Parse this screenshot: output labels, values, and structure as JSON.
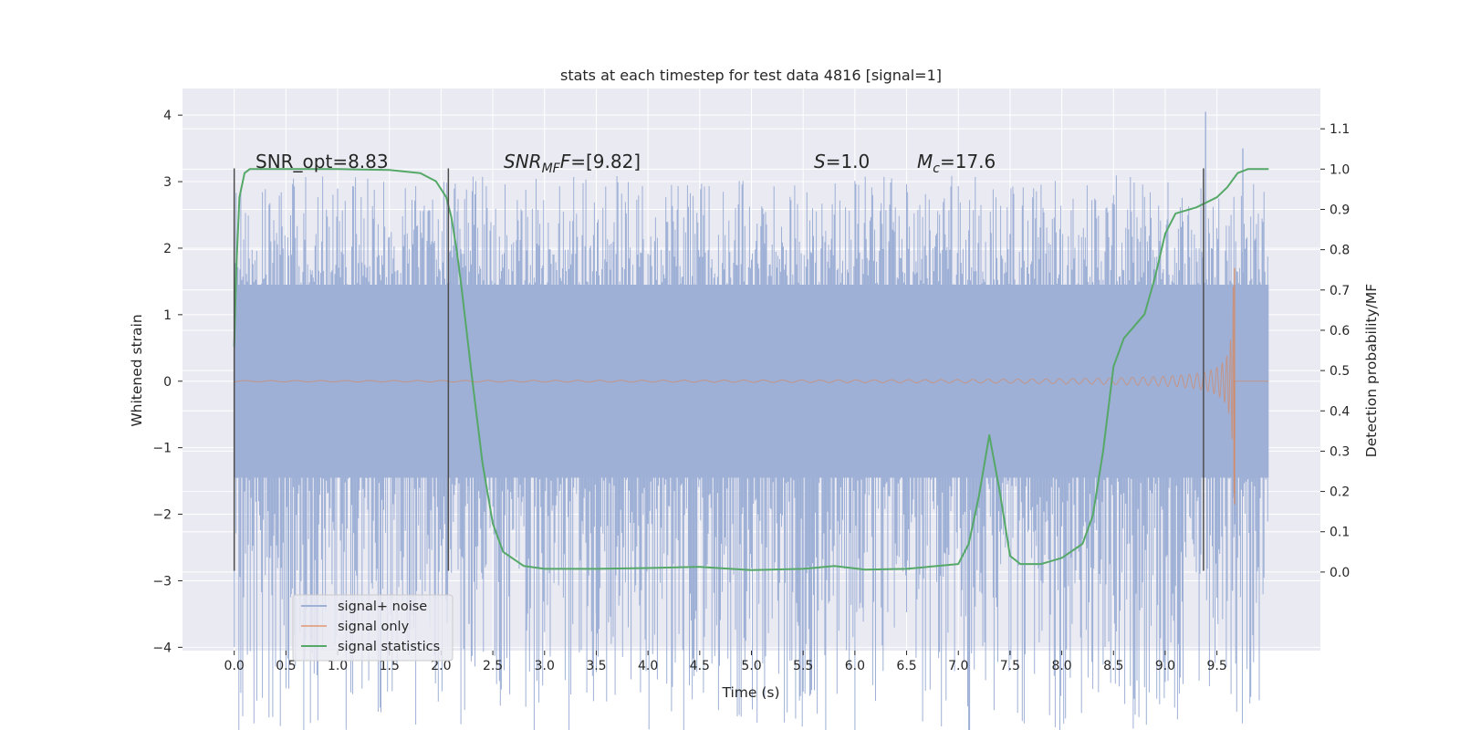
{
  "chart_data": {
    "type": "line",
    "title": "stats at each timestep for test data 4816 [signal=1]",
    "xlabel": "Time (s)",
    "ylabel": "Whitened strain",
    "y2label": "Detection probability/MF",
    "xlim": [
      -0.5,
      10.5
    ],
    "ylim": [
      -4.05,
      4.4
    ],
    "y2lim": [
      -0.195,
      1.2
    ],
    "x_ticks": [
      "0.0",
      "0.5",
      "1.0",
      "1.5",
      "2.0",
      "2.5",
      "3.0",
      "3.5",
      "4.0",
      "4.5",
      "5.0",
      "5.5",
      "6.0",
      "6.5",
      "7.0",
      "7.5",
      "8.0",
      "8.5",
      "9.0",
      "9.5"
    ],
    "y_ticks": [
      "−4",
      "−3",
      "−2",
      "−1",
      "0",
      "1",
      "2",
      "3",
      "4"
    ],
    "y2_ticks": [
      "0.0",
      "0.1",
      "0.2",
      "0.3",
      "0.4",
      "0.5",
      "0.6",
      "0.7",
      "0.8",
      "0.9",
      "1.0",
      "1.1"
    ],
    "grid": true,
    "legend_position": "lower-left",
    "colors": {
      "background": "#eaeaf2",
      "grid": "#ffffff",
      "noise": "#9eb0d6",
      "signal": "#dd8452",
      "stats": "#55a868",
      "markers": "#4d4d4d"
    },
    "annotations": {
      "snr_opt": "SNR_opt=8.83",
      "snr_mf_sym": "SNR",
      "snr_mf_sub": "MF",
      "snr_mf_val": "=[9.82]",
      "s_sym": "S",
      "s_val": "=1.0",
      "mc_sym": "M",
      "mc_sub": "c",
      "mc_val": "=17.6"
    },
    "vertical_markers_x": [
      0.0,
      2.07,
      9.37
    ],
    "series": [
      {
        "name": "signal+ noise",
        "kind": "noise",
        "duration": 10.0,
        "envelope": [
          -2.7,
          3.1
        ],
        "dense_band": [
          -1.45,
          1.45
        ],
        "notable_peaks": [
          [
            0.55,
            -3.2
          ],
          [
            2.27,
            -3.65
          ],
          [
            3.5,
            -3.5
          ],
          [
            9.39,
            4.05
          ],
          [
            9.65,
            -3.15
          ],
          [
            9.75,
            3.5
          ]
        ]
      },
      {
        "name": "signal only",
        "kind": "chirp",
        "merger_time": 9.67,
        "peak_amplitude": 1.7,
        "min_amplitude": -1.85
      },
      {
        "name": "signal statistics",
        "kind": "probability",
        "x": [
          0.0,
          0.02,
          0.05,
          0.1,
          0.15,
          0.25,
          0.4,
          0.6,
          1.0,
          1.5,
          1.8,
          1.95,
          2.05,
          2.1,
          2.15,
          2.2,
          2.3,
          2.4,
          2.5,
          2.6,
          2.8,
          3.0,
          3.5,
          4.0,
          4.5,
          5.0,
          5.5,
          5.8,
          6.1,
          6.5,
          7.0,
          7.1,
          7.2,
          7.3,
          7.4,
          7.5,
          7.6,
          7.8,
          8.0,
          8.2,
          8.3,
          8.4,
          8.5,
          8.6,
          8.8,
          8.9,
          9.0,
          9.1,
          9.3,
          9.5,
          9.6,
          9.7,
          9.8,
          9.9,
          10.0
        ],
        "y": [
          0.56,
          0.75,
          0.93,
          0.99,
          1.0,
          1.0,
          1.0,
          1.0,
          1.0,
          0.998,
          0.99,
          0.97,
          0.93,
          0.88,
          0.8,
          0.7,
          0.48,
          0.27,
          0.12,
          0.05,
          0.015,
          0.008,
          0.008,
          0.01,
          0.013,
          0.005,
          0.008,
          0.015,
          0.006,
          0.008,
          0.02,
          0.07,
          0.19,
          0.34,
          0.2,
          0.04,
          0.02,
          0.02,
          0.035,
          0.07,
          0.14,
          0.3,
          0.51,
          0.58,
          0.64,
          0.73,
          0.84,
          0.89,
          0.905,
          0.93,
          0.955,
          0.99,
          1.0,
          1.0,
          1.0
        ]
      }
    ]
  }
}
